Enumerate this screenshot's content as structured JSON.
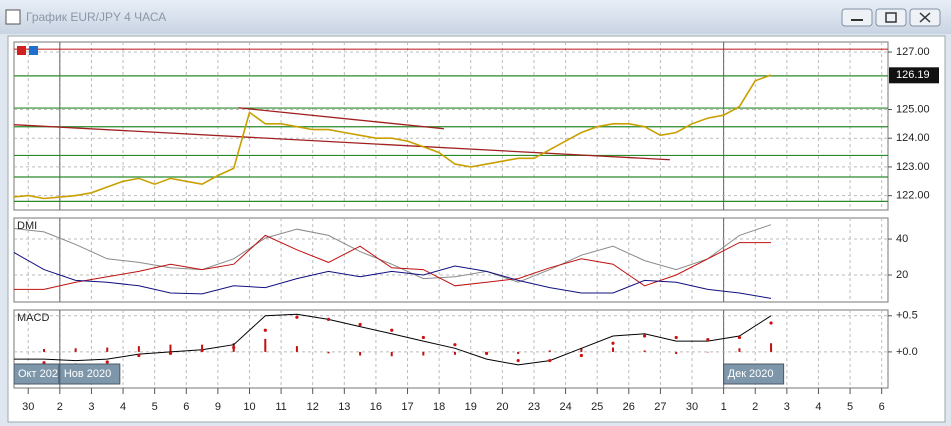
{
  "window": {
    "title": "График EUR/JPY  4 ЧАСА"
  },
  "time_axis": {
    "xlim": [
      -0.45,
      27.2
    ],
    "xticks": [
      {
        "value": 0,
        "label": "30"
      },
      {
        "value": 1,
        "label": "2"
      },
      {
        "value": 2,
        "label": "3"
      },
      {
        "value": 3,
        "label": "4"
      },
      {
        "value": 4,
        "label": "5"
      },
      {
        "value": 5,
        "label": "6"
      },
      {
        "value": 6,
        "label": "9"
      },
      {
        "value": 7,
        "label": "10"
      },
      {
        "value": 8,
        "label": "11"
      },
      {
        "value": 9,
        "label": "12"
      },
      {
        "value": 10,
        "label": "13"
      },
      {
        "value": 11,
        "label": "16"
      },
      {
        "value": 12,
        "label": "17"
      },
      {
        "value": 13,
        "label": "18"
      },
      {
        "value": 14,
        "label": "19"
      },
      {
        "value": 15,
        "label": "20"
      },
      {
        "value": 16,
        "label": "23"
      },
      {
        "value": 17,
        "label": "24"
      },
      {
        "value": 18,
        "label": "25"
      },
      {
        "value": 19,
        "label": "26"
      },
      {
        "value": 20,
        "label": "27"
      },
      {
        "value": 21,
        "label": "30"
      },
      {
        "value": 22,
        "label": "1"
      },
      {
        "value": 23,
        "label": "2"
      },
      {
        "value": 24,
        "label": "3"
      },
      {
        "value": 25,
        "label": "4"
      },
      {
        "value": 26,
        "label": "5"
      },
      {
        "value": 27,
        "label": "6"
      }
    ],
    "vlines": [
      1,
      22
    ],
    "periods": [
      {
        "label": "Окт 202",
        "x": -0.45
      },
      {
        "label": "Нов 2020",
        "x": 1
      },
      {
        "label": "Дек 2020",
        "x": 22
      }
    ]
  },
  "chart_data": [
    {
      "type": "line",
      "ylim": [
        121.5,
        127.35
      ],
      "yticks": [
        {
          "value": 122,
          "label": "122.00"
        },
        {
          "value": 123,
          "label": "123.00"
        },
        {
          "value": 124,
          "label": "124.00"
        },
        {
          "value": 125,
          "label": "125.00"
        },
        {
          "value": 127,
          "label": "127.00"
        }
      ],
      "grid": true,
      "last_price": 126.19,
      "x": [
        -0.5,
        0,
        0.5,
        1,
        1.5,
        2,
        2.5,
        3,
        3.5,
        4,
        4.5,
        5,
        5.5,
        6,
        6.5,
        7,
        7.5,
        8,
        8.5,
        9,
        9.5,
        10,
        10.5,
        11,
        11.5,
        12,
        12.5,
        13,
        13.5,
        14,
        14.5,
        15,
        15.5,
        16,
        16.5,
        17,
        17.5,
        18,
        18.5,
        19,
        19.5,
        20,
        20.5,
        21,
        21.5,
        22,
        22.5,
        23,
        23.5
      ],
      "series": [
        {
          "color": "#c9a000",
          "style": "line",
          "values": [
            121.95,
            122.0,
            121.9,
            121.95,
            122.0,
            122.1,
            122.3,
            122.5,
            122.6,
            122.4,
            122.6,
            122.5,
            122.4,
            122.7,
            122.95,
            124.9,
            124.5,
            124.5,
            124.4,
            124.3,
            124.3,
            124.2,
            124.1,
            124.0,
            124.0,
            123.9,
            123.7,
            123.5,
            123.1,
            123.0,
            123.1,
            123.2,
            123.3,
            123.3,
            123.6,
            123.9,
            124.2,
            124.4,
            124.5,
            124.5,
            124.4,
            124.1,
            124.2,
            124.5,
            124.7,
            124.8,
            125.1,
            126.0,
            126.2
          ]
        }
      ],
      "hlines": [
        {
          "value": 127.1,
          "color": "#c03030"
        },
        {
          "value": 126.17,
          "color": "#2a8a2a"
        },
        {
          "value": 125.05,
          "color": "#2a8a2a"
        },
        {
          "value": 124.4,
          "color": "#2a8a2a"
        },
        {
          "value": 123.4,
          "color": "#2a8a2a"
        },
        {
          "value": 122.65,
          "color": "#2a8a2a"
        },
        {
          "value": 121.8,
          "color": "#2a8a2a"
        }
      ],
      "trendlines": [
        {
          "x": [
            -0.45,
            20.3
          ],
          "y": [
            124.47,
            123.25
          ],
          "color": "#a02020"
        },
        {
          "x": [
            6.65,
            13.15
          ],
          "y": [
            125.06,
            124.33
          ],
          "color": "#a02020"
        }
      ]
    },
    {
      "type": "line",
      "label": "DMI",
      "ylim": [
        5,
        51.7
      ],
      "yticks": [
        20,
        40
      ],
      "grid": true,
      "x": [
        -0.5,
        0.5,
        1.5,
        2.5,
        3.5,
        4.5,
        5.5,
        6.5,
        7.5,
        8.5,
        9.5,
        10.5,
        11.5,
        12.5,
        13.5,
        14.5,
        15.5,
        16.5,
        17.5,
        18.5,
        19.5,
        20.5,
        21.5,
        22.5,
        23.5
      ],
      "series": [
        {
          "color": "#8a8a8a",
          "style": "line",
          "values": [
            46,
            44,
            37,
            29,
            27,
            24,
            23,
            29,
            40.5,
            45.5,
            42,
            33,
            26,
            18,
            19,
            22,
            16,
            23,
            31,
            36,
            28,
            23,
            29,
            42,
            48
          ]
        },
        {
          "color": "#c01010",
          "style": "line",
          "values": [
            12,
            12,
            16,
            19,
            22,
            26,
            23,
            26,
            42,
            34,
            27,
            36,
            24,
            23,
            14,
            16,
            18,
            24,
            29,
            26,
            14,
            20,
            29,
            38,
            38
          ]
        },
        {
          "color": "#101080",
          "style": "line",
          "values": [
            33,
            23,
            17,
            16,
            14,
            10,
            9.5,
            14,
            13,
            18,
            22,
            19,
            22,
            20,
            25,
            22,
            17,
            13,
            10,
            10,
            17,
            16,
            12,
            10,
            7
          ]
        }
      ]
    },
    {
      "type": "line",
      "label": "MACD",
      "ylim": [
        -0.5,
        0.58
      ],
      "yticks": [
        {
          "value": 0.5,
          "label": "+0.5"
        },
        {
          "value": 0,
          "label": "+0.0"
        }
      ],
      "grid": true,
      "x": [
        -0.5,
        0.5,
        1.5,
        2.5,
        3.5,
        4.5,
        5.5,
        6.5,
        7.5,
        8.5,
        9.5,
        10.5,
        11.5,
        12.5,
        13.5,
        14.5,
        15.5,
        16.5,
        17.5,
        18.5,
        19.5,
        20.5,
        21.5,
        22.5,
        23.5
      ],
      "series": [
        {
          "color": "#c01010",
          "style": "bars",
          "values": [
            0.04,
            0.04,
            0.05,
            0.06,
            0.08,
            0.1,
            0.1,
            0.12,
            0.18,
            0.08,
            -0.02,
            -0.05,
            -0.06,
            -0.05,
            -0.04,
            -0.04,
            -0.03,
            0.02,
            0.05,
            0.06,
            0.02,
            -0.03,
            0.0,
            0.05,
            0.12
          ]
        },
        {
          "color": "#000000",
          "style": "line",
          "values": [
            -0.1,
            -0.1,
            -0.12,
            -0.1,
            -0.03,
            0.0,
            0.03,
            0.1,
            0.5,
            0.52,
            0.45,
            0.35,
            0.25,
            0.15,
            0.05,
            -0.1,
            -0.18,
            -0.12,
            0.05,
            0.22,
            0.25,
            0.15,
            0.15,
            0.22,
            0.5
          ]
        },
        {
          "color": "#d01010",
          "style": "dots",
          "values": [
            -0.1,
            -0.15,
            -0.18,
            -0.14,
            -0.05,
            -0.02,
            0.02,
            0.06,
            0.3,
            0.48,
            0.45,
            0.38,
            0.3,
            0.2,
            0.1,
            -0.02,
            -0.12,
            -0.12,
            -0.05,
            0.12,
            0.22,
            0.2,
            0.17,
            0.2,
            0.4
          ]
        }
      ]
    }
  ]
}
